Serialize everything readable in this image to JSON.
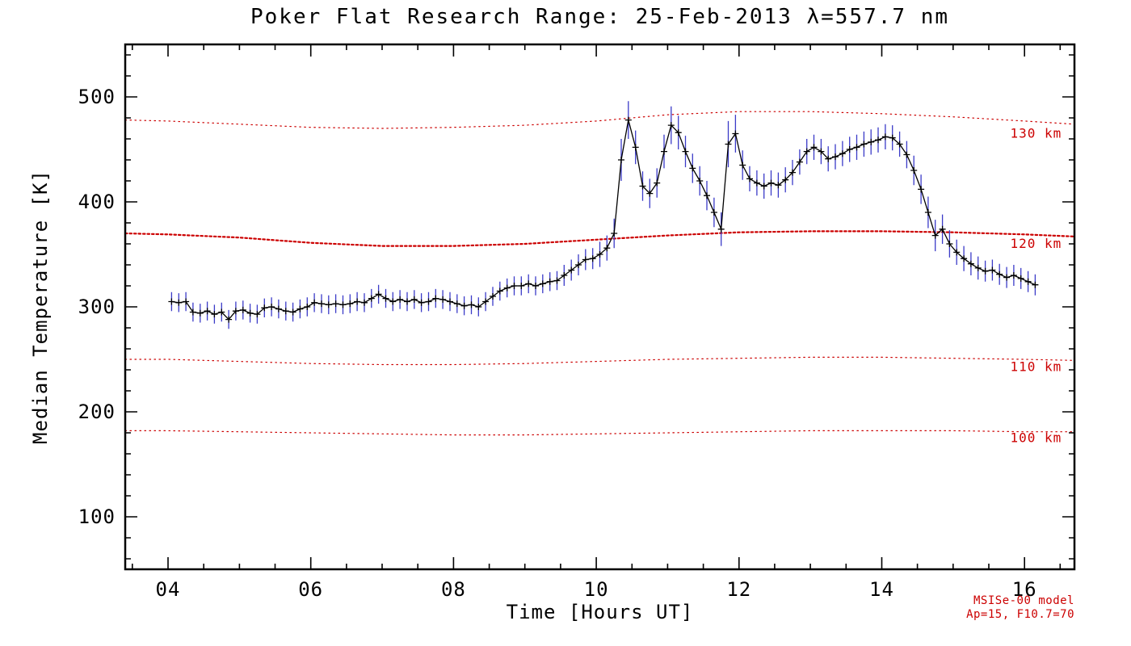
{
  "colors": {
    "axis": "#000000",
    "data_line": "#000000",
    "marker": "#000000",
    "error_bar": "#3b3bc8",
    "model_line": "#cc0000",
    "background": "#ffffff"
  },
  "annotations": {
    "model_line_1": "MSISe-00 model",
    "model_line_2": "Ap=15, F10.7=70"
  },
  "chart_data": {
    "type": "line",
    "title": "Poker Flat Research Range: 25-Feb-2013 λ=557.7 nm",
    "xlabel": "Time [Hours UT]",
    "ylabel": "Median Temperature [K]",
    "xlim": [
      3.4,
      16.7
    ],
    "ylim": [
      50,
      550
    ],
    "grid": false,
    "x_major_ticks": [
      4,
      6,
      8,
      10,
      12,
      14,
      16
    ],
    "x_tick_labels": [
      "04",
      "06",
      "08",
      "10",
      "12",
      "14",
      "16"
    ],
    "x_minor_step": 0.5,
    "y_major_ticks": [
      100,
      200,
      300,
      400,
      500
    ],
    "y_tick_labels": [
      "100",
      "200",
      "300",
      "400",
      "500"
    ],
    "y_minor_step": 20,
    "series": [
      {
        "name": "median-temperature",
        "x": [
          4.05,
          4.15,
          4.25,
          4.35,
          4.45,
          4.55,
          4.65,
          4.75,
          4.85,
          4.95,
          5.05,
          5.15,
          5.25,
          5.35,
          5.45,
          5.55,
          5.65,
          5.75,
          5.85,
          5.95,
          6.05,
          6.15,
          6.25,
          6.35,
          6.45,
          6.55,
          6.65,
          6.75,
          6.85,
          6.95,
          7.05,
          7.15,
          7.25,
          7.35,
          7.45,
          7.55,
          7.65,
          7.75,
          7.85,
          7.95,
          8.05,
          8.15,
          8.25,
          8.35,
          8.45,
          8.55,
          8.65,
          8.75,
          8.85,
          8.95,
          9.05,
          9.15,
          9.25,
          9.35,
          9.45,
          9.55,
          9.65,
          9.75,
          9.85,
          9.95,
          10.05,
          10.15,
          10.25,
          10.35,
          10.45,
          10.55,
          10.65,
          10.75,
          10.85,
          10.95,
          11.05,
          11.15,
          11.25,
          11.35,
          11.45,
          11.55,
          11.65,
          11.75,
          11.85,
          11.95,
          12.05,
          12.15,
          12.25,
          12.35,
          12.45,
          12.55,
          12.65,
          12.75,
          12.85,
          12.95,
          13.05,
          13.15,
          13.25,
          13.35,
          13.45,
          13.55,
          13.65,
          13.75,
          13.85,
          13.95,
          14.05,
          14.15,
          14.25,
          14.35,
          14.45,
          14.55,
          14.65,
          14.75,
          14.85,
          14.95,
          15.05,
          15.15,
          15.25,
          15.35,
          15.45,
          15.55,
          15.65,
          15.75,
          15.85,
          15.95,
          16.05,
          16.15
        ],
        "y": [
          305,
          304,
          305,
          295,
          294,
          296,
          293,
          295,
          288,
          296,
          297,
          294,
          293,
          299,
          300,
          298,
          296,
          295,
          298,
          300,
          304,
          303,
          302,
          303,
          302,
          303,
          305,
          304,
          308,
          312,
          308,
          305,
          307,
          305,
          307,
          304,
          305,
          308,
          307,
          305,
          303,
          301,
          302,
          300,
          305,
          310,
          315,
          318,
          320,
          320,
          322,
          320,
          322,
          324,
          325,
          330,
          335,
          340,
          345,
          346,
          350,
          356,
          370,
          440,
          478,
          452,
          415,
          408,
          418,
          448,
          473,
          466,
          448,
          432,
          420,
          406,
          390,
          374,
          455,
          465,
          435,
          422,
          418,
          415,
          418,
          416,
          421,
          428,
          438,
          448,
          452,
          448,
          441,
          443,
          446,
          450,
          452,
          455,
          457,
          459,
          462,
          461,
          455,
          445,
          430,
          412,
          390,
          368,
          374,
          360,
          352,
          346,
          341,
          337,
          334,
          335,
          331,
          328,
          330,
          327,
          324,
          321
        ],
        "yerr": [
          9,
          9,
          9,
          9,
          9,
          9,
          9,
          9,
          9,
          9,
          9,
          9,
          9,
          9,
          9,
          9,
          9,
          9,
          9,
          9,
          9,
          9,
          9,
          9,
          9,
          9,
          9,
          9,
          9,
          9,
          9,
          9,
          9,
          9,
          9,
          9,
          9,
          9,
          9,
          9,
          9,
          9,
          9,
          9,
          9,
          9,
          9,
          9,
          9,
          9,
          9,
          9,
          9,
          9,
          9,
          10,
          10,
          10,
          10,
          10,
          12,
          12,
          14,
          20,
          18,
          16,
          14,
          14,
          14,
          16,
          18,
          16,
          15,
          14,
          14,
          14,
          14,
          16,
          22,
          18,
          14,
          12,
          12,
          12,
          12,
          12,
          12,
          12,
          12,
          12,
          12,
          12,
          12,
          12,
          12,
          12,
          12,
          12,
          12,
          12,
          12,
          12,
          12,
          13,
          14,
          14,
          15,
          15,
          14,
          13,
          12,
          12,
          11,
          11,
          10,
          10,
          10,
          10,
          10,
          10,
          10,
          10
        ]
      }
    ],
    "model_lines": [
      {
        "label": "130 km",
        "emphasis": false,
        "label_x": 15.8,
        "label_y": 461,
        "x": [
          3.4,
          4,
          5,
          6,
          7,
          8,
          9,
          10,
          11,
          12,
          13,
          14,
          15,
          16,
          16.7
        ],
        "y": [
          478,
          477,
          474,
          471,
          470,
          471,
          473,
          477,
          483,
          486,
          486,
          484,
          481,
          477,
          474
        ]
      },
      {
        "label": "120 km",
        "emphasis": true,
        "label_x": 15.8,
        "label_y": 356,
        "x": [
          3.4,
          4,
          5,
          6,
          7,
          8,
          9,
          10,
          11,
          12,
          13,
          14,
          15,
          16,
          16.7
        ],
        "y": [
          370,
          369,
          366,
          361,
          358,
          358,
          360,
          364,
          368,
          371,
          372,
          372,
          371,
          369,
          367
        ]
      },
      {
        "label": "110 km",
        "emphasis": false,
        "label_x": 15.8,
        "label_y": 239,
        "x": [
          3.4,
          4,
          5,
          6,
          7,
          8,
          9,
          10,
          11,
          12,
          13,
          14,
          15,
          16,
          16.7
        ],
        "y": [
          250,
          250,
          248,
          246,
          245,
          245,
          246,
          248,
          250,
          251,
          252,
          252,
          251,
          250,
          249
        ]
      },
      {
        "label": "100 km",
        "emphasis": false,
        "label_x": 15.8,
        "label_y": 171,
        "x": [
          3.4,
          4,
          5,
          6,
          7,
          8,
          9,
          10,
          11,
          12,
          13,
          14,
          15,
          16,
          16.7
        ],
        "y": [
          182,
          182,
          181,
          180,
          179,
          178,
          178,
          179,
          180,
          181,
          182,
          182,
          182,
          181,
          181
        ]
      }
    ]
  }
}
